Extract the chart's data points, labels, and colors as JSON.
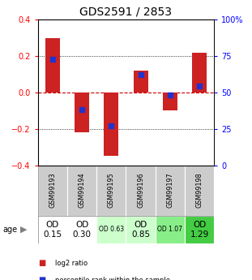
{
  "title": "GDS2591 / 2853",
  "samples": [
    "GSM99193",
    "GSM99194",
    "GSM99195",
    "GSM99196",
    "GSM99197",
    "GSM99198"
  ],
  "log2_ratio": [
    0.3,
    -0.22,
    -0.35,
    0.12,
    -0.1,
    0.22
  ],
  "percentile_rank": [
    0.725,
    0.38,
    0.27,
    0.62,
    0.485,
    0.545
  ],
  "ylim": [
    -0.4,
    0.4
  ],
  "left_yticks": [
    -0.4,
    -0.2,
    0.0,
    0.2,
    0.4
  ],
  "right_yticks": [
    0,
    25,
    50,
    75,
    100
  ],
  "right_yticklabels": [
    "0",
    "25",
    "50",
    "75",
    "100%"
  ],
  "bar_color": "#cc2222",
  "dot_color": "#2233cc",
  "zero_line_color": "#cc0000",
  "age_labels": [
    "OD\n0.15",
    "OD\n0.30",
    "OD 0.63",
    "OD\n0.85",
    "OD 1.07",
    "OD\n1.29"
  ],
  "age_bg_colors": [
    "#ffffff",
    "#ffffff",
    "#ccffcc",
    "#ccffcc",
    "#88ee88",
    "#44cc44"
  ],
  "age_fontsize_large": [
    true,
    true,
    false,
    true,
    false,
    true
  ],
  "label_log2": "log2 ratio",
  "label_percentile": "percentile rank within the sample",
  "title_fontsize": 10,
  "tick_fontsize": 7,
  "bar_width": 0.5,
  "gsm_bg_color": "#cccccc",
  "gsm_edge_color": "#aaaaaa"
}
